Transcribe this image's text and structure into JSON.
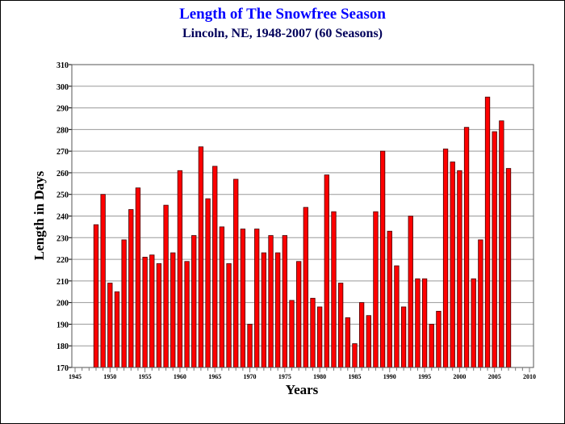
{
  "chart_data": {
    "type": "bar",
    "title": "Length of The Snowfree Season",
    "subtitle": "Lincoln, NE, 1948-2007 (60 Seasons)",
    "xlabel": "Years",
    "ylabel": "Length in Days",
    "xlim": [
      1945,
      2010
    ],
    "ylim": [
      170,
      310
    ],
    "x_ticks": [
      "1945",
      "1950",
      "1955",
      "1960",
      "1965",
      "1970",
      "1975",
      "1980",
      "1985",
      "1990",
      "1995",
      "2000",
      "2005",
      "2010"
    ],
    "y_ticks": [
      "170",
      "180",
      "190",
      "200",
      "210",
      "220",
      "230",
      "240",
      "250",
      "260",
      "270",
      "280",
      "290",
      "300",
      "310"
    ],
    "grid": true,
    "bar_color": "#ff0000",
    "x": [
      1948,
      1949,
      1950,
      1951,
      1952,
      1953,
      1954,
      1955,
      1956,
      1957,
      1958,
      1959,
      1960,
      1961,
      1962,
      1963,
      1964,
      1965,
      1966,
      1967,
      1968,
      1969,
      1970,
      1971,
      1972,
      1973,
      1974,
      1975,
      1976,
      1977,
      1978,
      1979,
      1980,
      1981,
      1982,
      1983,
      1984,
      1985,
      1986,
      1987,
      1988,
      1989,
      1990,
      1991,
      1992,
      1993,
      1994,
      1995,
      1996,
      1997,
      1998,
      1999,
      2000,
      2001,
      2002,
      2003,
      2004,
      2005,
      2006,
      2007
    ],
    "values": [
      236,
      250,
      209,
      205,
      229,
      243,
      253,
      221,
      222,
      218,
      245,
      223,
      261,
      219,
      231,
      272,
      248,
      263,
      235,
      218,
      257,
      234,
      190,
      234,
      223,
      231,
      223,
      231,
      201,
      219,
      244,
      202,
      198,
      259,
      242,
      209,
      193,
      181,
      200,
      194,
      242,
      270,
      233,
      217,
      198,
      240,
      211,
      211,
      190,
      196,
      271,
      265,
      261,
      281,
      211,
      229,
      295,
      279,
      284,
      262
    ]
  }
}
